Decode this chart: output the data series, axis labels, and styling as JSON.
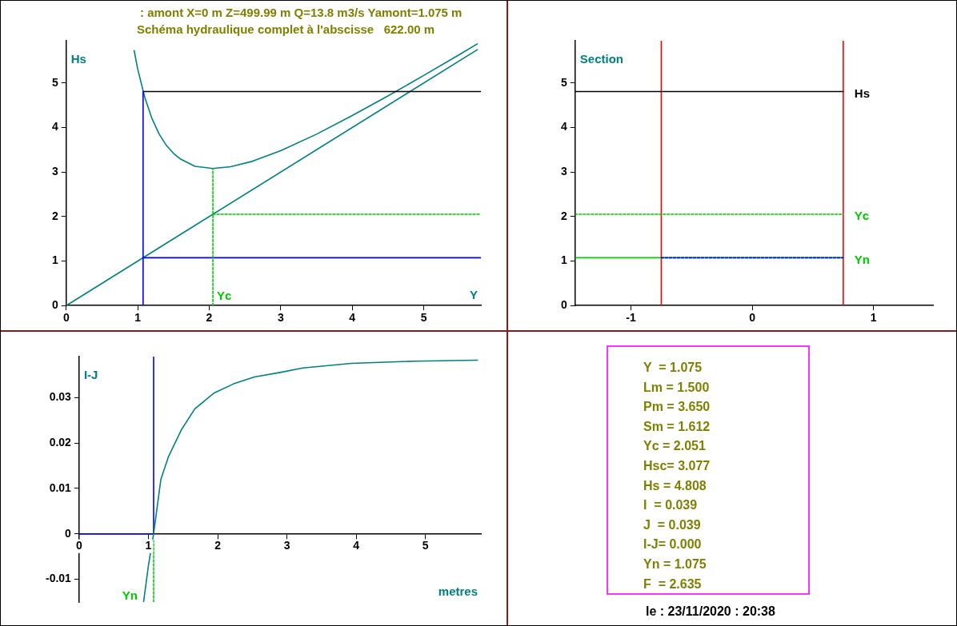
{
  "chart_data": [
    {
      "type": "line",
      "title": ": amont X=0 m Z=499.99 m Q=13.8 m3/s Yamont=1.075 m",
      "subtitle": "Schéma hydraulique complet à l'abscisse   622.00 m",
      "xlabel": "Y",
      "ylabel": "Hs",
      "xlim": [
        0,
        5.8
      ],
      "ylim": [
        0,
        5.95
      ],
      "xticks": [
        0,
        1,
        2,
        3,
        4,
        5
      ],
      "yticks": [
        0,
        1,
        2,
        3,
        4,
        5
      ],
      "grid": false,
      "legend": false,
      "marker": "none",
      "series": [
        {
          "color": "#008080",
          "x": [
            0.95,
            1.0,
            1.1,
            1.2,
            1.3,
            1.4,
            1.5,
            1.6,
            1.8,
            2.05,
            2.3,
            2.6,
            3.0,
            3.5,
            4.0,
            4.5,
            5.0,
            5.5,
            5.75
          ],
          "values": [
            5.73,
            5.31,
            4.67,
            4.2,
            3.85,
            3.6,
            3.42,
            3.29,
            3.13,
            3.08,
            3.12,
            3.24,
            3.48,
            3.85,
            4.27,
            4.71,
            5.17,
            5.64,
            5.88
          ]
        },
        {
          "color": "#008080",
          "x": [
            0,
            5.75
          ],
          "values": [
            0,
            5.75
          ]
        },
        {
          "color": "#000000",
          "x": [
            1.075,
            5.8
          ],
          "values": [
            4.808,
            4.808
          ]
        },
        {
          "color": "#0000ff",
          "x": [
            1.075,
            1.075
          ],
          "values": [
            0,
            4.808
          ]
        },
        {
          "color": "#0000ff",
          "x": [
            1.075,
            5.8
          ],
          "values": [
            1.075,
            1.075
          ]
        },
        {
          "color": "#00cc00",
          "line_style": "dashed",
          "x": [
            2.051,
            2.051
          ],
          "values": [
            0,
            3.077
          ]
        },
        {
          "color": "#00cc00",
          "line_style": "dashed",
          "x": [
            2.051,
            5.8
          ],
          "values": [
            2.051,
            2.051
          ]
        }
      ],
      "annotations": [
        {
          "text": "Yc",
          "x": 2.051,
          "y": 0
        }
      ]
    },
    {
      "type": "line",
      "ylabel": "Section",
      "xlim": [
        -1.46,
        1.49
      ],
      "ylim": [
        0,
        5.95
      ],
      "xticks": [
        -1,
        0,
        1
      ],
      "yticks": [
        0,
        1,
        2,
        3,
        4,
        5
      ],
      "grid": false,
      "legend": false,
      "marker": "none",
      "series": [
        {
          "color": "#ff0000",
          "x": [
            -0.75,
            -0.75
          ],
          "values": [
            0,
            5.95
          ]
        },
        {
          "color": "#ff0000",
          "x": [
            0.75,
            0.75
          ],
          "values": [
            0,
            5.95
          ]
        },
        {
          "color": "#000000",
          "x": [
            -1.46,
            0.75
          ],
          "values": [
            4.808,
            4.808
          ]
        },
        {
          "color": "#00cc00",
          "line_style": "dashed",
          "x": [
            -1.46,
            0.75
          ],
          "values": [
            2.051,
            2.051
          ]
        },
        {
          "color": "#00cc00",
          "x": [
            -1.46,
            0.75
          ],
          "values": [
            1.075,
            1.075
          ]
        },
        {
          "color": "#0000ff",
          "line_style": "dashed",
          "x": [
            -0.75,
            0.75
          ],
          "values": [
            1.075,
            1.075
          ]
        }
      ],
      "annotations": [
        {
          "text": "Hs",
          "x": 0.75,
          "y": 4.808
        },
        {
          "text": "Yc",
          "x": 0.75,
          "y": 2.051
        },
        {
          "text": "Yn",
          "x": 0.75,
          "y": 1.075
        }
      ]
    },
    {
      "type": "line",
      "xlabel": "metres",
      "ylabel": "I-J",
      "xlim": [
        0,
        5.8
      ],
      "ylim": [
        -0.015,
        0.039
      ],
      "xticks": [
        0,
        1,
        2,
        3,
        4,
        5
      ],
      "yticks": [
        -0.01,
        0,
        0.01,
        0.02,
        0.03
      ],
      "grid": false,
      "legend": false,
      "marker": "none",
      "series": [
        {
          "color": "#0000ff",
          "x": [
            0,
            1.075
          ],
          "values": [
            0,
            0
          ]
        },
        {
          "color": "#0000ff",
          "x": [
            1.075,
            1.075
          ],
          "values": [
            0,
            0.039
          ]
        },
        {
          "color": "#00cc00",
          "line_style": "dashed",
          "x": [
            1.075,
            1.075
          ],
          "values": [
            -0.015,
            -0.0015
          ]
        },
        {
          "color": "#008080",
          "x": [
            0.93,
            1.0,
            1.075,
            1.18,
            1.29,
            1.48,
            1.67,
            1.95,
            2.23,
            2.53,
            2.9,
            3.23,
            3.93,
            4.86,
            5.75
          ],
          "values": [
            -0.015,
            -0.007,
            0,
            0.012,
            0.017,
            0.023,
            0.0275,
            0.031,
            0.033,
            0.0345,
            0.0355,
            0.0365,
            0.0375,
            0.038,
            0.0382
          ]
        }
      ],
      "annotations": [
        {
          "text": "Yn",
          "x": 1.075,
          "y": -0.015
        }
      ]
    },
    {
      "type": "other",
      "annotations": [
        "Y  = 1.075",
        "Lm = 1.500",
        "Pm = 3.650",
        "Sm = 1.612",
        "Yc = 2.051",
        "Hsc= 3.077",
        "Hs = 4.808",
        "I  = 0.039",
        "J  = 0.039",
        "I-J= 0.000",
        "Yn = 1.075",
        "F  = 2.635",
        "le : 23/11/2020 : 20:38"
      ]
    }
  ]
}
